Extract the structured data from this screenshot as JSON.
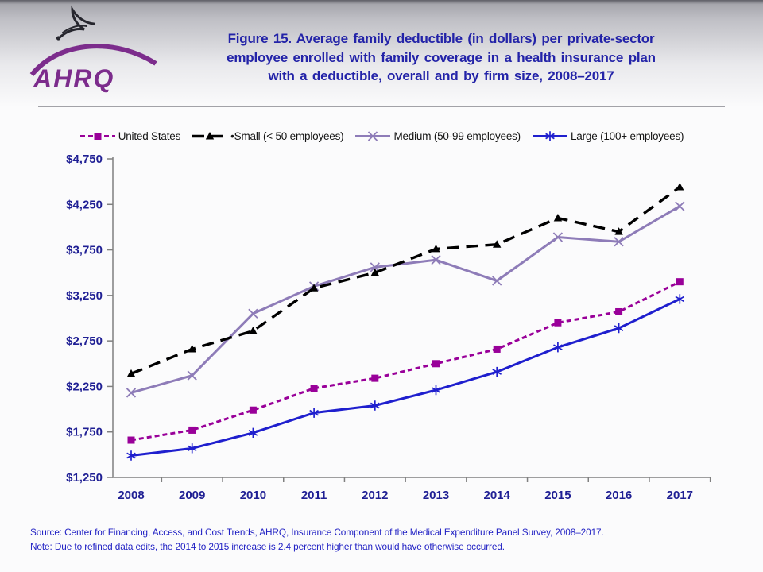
{
  "header": {
    "logo_text": "AHRQ",
    "eagle_icon": "hhs-eagle-icon",
    "title_lines": [
      "Figure 15. Average family deductible (in dollars) per private-sector",
      "employee enrolled with family coverage in a health insurance plan",
      "with a deductible, overall and by firm size, 2008–2017"
    ]
  },
  "legend": {
    "items": [
      {
        "label": "United States"
      },
      {
        "label": "•Small (< 50 employees)"
      },
      {
        "label": "Medium (50-99 employees)"
      },
      {
        "label": "Large (100+ employees)"
      }
    ]
  },
  "chart_data": {
    "type": "line",
    "title": "Figure 15. Average family deductible (in dollars) per private-sector employee enrolled with family coverage in a health insurance plan with a deductible, overall and by firm size, 2008–2017",
    "x": [
      2008,
      2009,
      2010,
      2011,
      2012,
      2013,
      2014,
      2015,
      2016,
      2017
    ],
    "xlabel": "",
    "ylabel": "",
    "y_axis": {
      "min": 1250,
      "max": 4750,
      "step": 500,
      "prefix": "$"
    },
    "grid": false,
    "legend_position": "top",
    "series": [
      {
        "name": "United States",
        "color": "#990099",
        "dash": "6 4",
        "width": 3,
        "marker": "square",
        "values": [
          1660,
          1770,
          1990,
          2230,
          2340,
          2500,
          2660,
          2950,
          3070,
          3400
        ]
      },
      {
        "name": "Small (< 50 employees)",
        "color": "#000000",
        "dash": "15 9",
        "width": 3.4,
        "marker": "triangle",
        "values": [
          2390,
          2660,
          2860,
          3330,
          3500,
          3760,
          3810,
          4100,
          3950,
          4440
        ]
      },
      {
        "name": "Medium (50-99 employees)",
        "color": "#8e7cb8",
        "dash": null,
        "width": 3,
        "marker": "x-cross",
        "values": [
          2180,
          2370,
          3050,
          3350,
          3560,
          3640,
          3410,
          3890,
          3840,
          4230
        ]
      },
      {
        "name": "Large (100+ employees)",
        "color": "#1f1fce",
        "dash": null,
        "width": 3,
        "marker": "asterisk",
        "values": [
          1490,
          1570,
          1740,
          1960,
          2040,
          2210,
          2410,
          2680,
          2890,
          3210
        ]
      }
    ]
  },
  "footer": {
    "source": "Source: Center for Financing, Access, and Cost Trends, AHRQ, Insurance Component of the Medical Expenditure Panel Survey,  2008–2017.",
    "note": "Note: Due to refined data edits, the 2014 to 2015 increase is 2.4 percent higher than would have otherwise occurred."
  }
}
